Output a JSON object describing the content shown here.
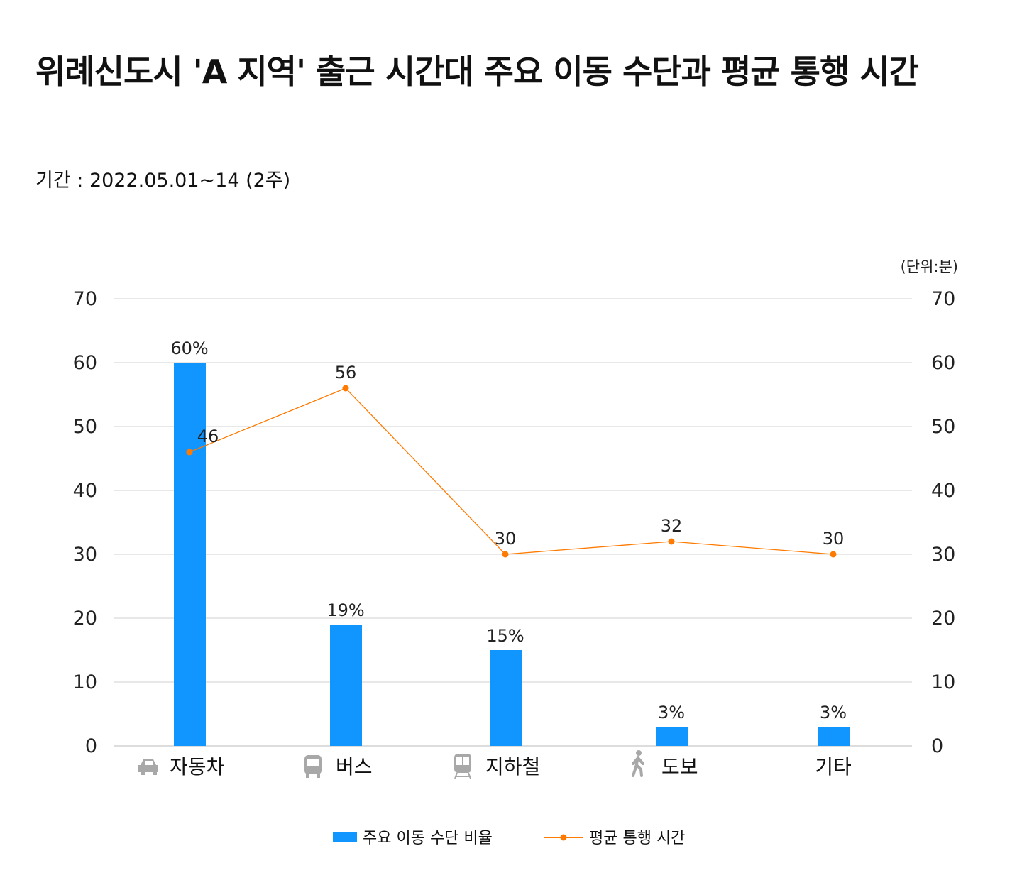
{
  "header": {
    "title": "위례신도시 'A 지역' 출근 시간대 주요 이동 수단과 평균 통행 시간",
    "subtitle": "기간 : 2022.05.01~14 (2주)"
  },
  "chart_data": {
    "type": "bar+line",
    "title": "위례신도시 'A 지역' 출근 시간대 주요 이동 수단과 평균 통행 시간",
    "subtitle": "기간 : 2022.05.01~14 (2주)",
    "unit_label": "(단위:분)",
    "categories": [
      "자동차",
      "버스",
      "지하철",
      "도보",
      "기타"
    ],
    "category_icons": [
      "car-icon",
      "bus-icon",
      "subway-icon",
      "walking-icon",
      ""
    ],
    "series": [
      {
        "name": "주요 이동 수단 비율",
        "type": "bar",
        "axis": "left",
        "values": [
          60,
          19,
          15,
          3,
          3
        ],
        "labels": [
          "60%",
          "19%",
          "15%",
          "3%",
          "3%"
        ],
        "color": "#1196FF"
      },
      {
        "name": "평균 통행 시간",
        "type": "line",
        "axis": "right",
        "values": [
          46,
          56,
          30,
          32,
          30
        ],
        "labels": [
          "46",
          "56",
          "30",
          "32",
          "30"
        ],
        "color": "#FF7A00"
      }
    ],
    "ylim": [
      0,
      70
    ],
    "y2lim": [
      0,
      70
    ],
    "yticks": [
      0,
      10,
      20,
      30,
      40,
      50,
      60,
      70
    ],
    "grid": true,
    "legend": "bottom",
    "gridline_color": "#D0D0D0"
  }
}
